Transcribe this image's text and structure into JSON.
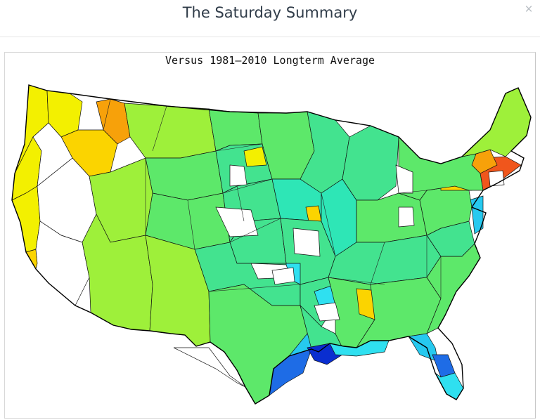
{
  "dialog": {
    "title": "The Saturday Summary",
    "close_symbol": "×",
    "close_icon": "close-icon"
  },
  "map": {
    "title": "Versus 1981–2010 Longterm Average",
    "colors": {
      "lightblue": "#2fe0f0",
      "cyan": "#26c9ef",
      "blue": "#1e6ce6",
      "darkblue": "#0a2ed0",
      "aqua": "#2ee6b6",
      "teal": "#43e38f",
      "green": "#5de86a",
      "lime": "#9ef03a",
      "yellowgreen": "#c9f028",
      "yellow": "#f3f000",
      "gold": "#fbd400",
      "orange": "#f7a10a",
      "red": "#f0561c",
      "nodata": "#ffffff"
    }
  }
}
